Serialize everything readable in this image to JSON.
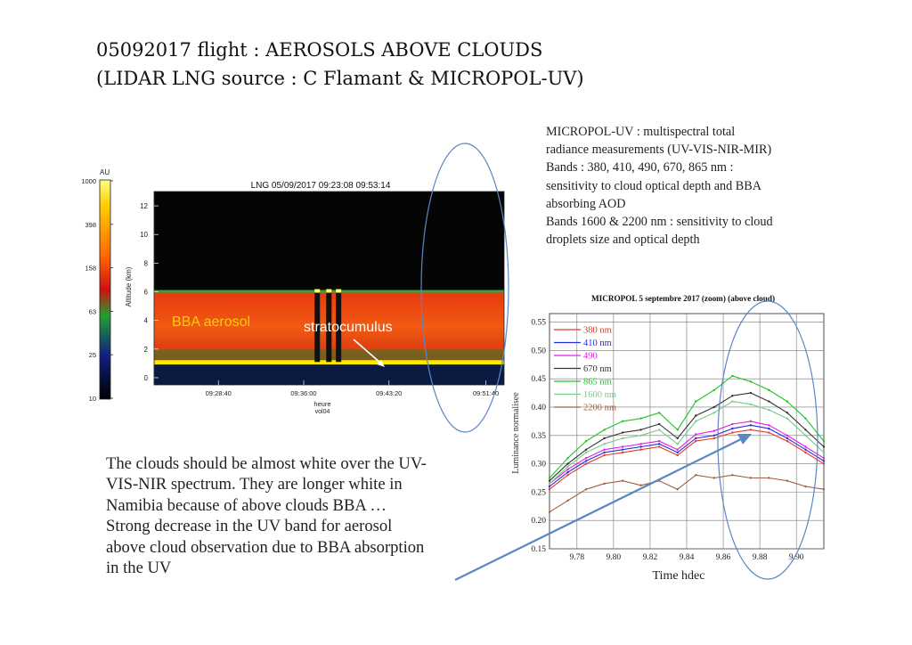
{
  "slide": {
    "title_line1": "05092017 flight : AEROSOLS ABOVE CLOUDS",
    "title_line2": "(LIDAR LNG source : C Flamant & MICROPOL-UV)",
    "description_lines": [
      "MICROPOL-UV : multispectral total",
      "radiance measurements (UV-VIS-NIR-MIR)",
      "Bands : 380, 410, 490, 670, 865 nm :",
      "sensitivity to cloud optical depth and BBA",
      "absorbing AOD",
      "Bands 1600 & 2200 nm : sensitivity to cloud",
      "droplets size and optical depth"
    ],
    "note_lines": [
      "The clouds should be almost white over the UV-",
      "VIS-NIR spectrum. They are longer white in",
      "Namibia because of above clouds BBA …",
      "Strong decrease in the UV band for aerosol",
      "above cloud observation due to BBA absorption",
      "in the UV"
    ],
    "highlight_color": "#5b86c4"
  },
  "chart_data": [
    {
      "type": "heatmap",
      "title": "LNG 05/09/2017 09:23:08 09:53:14",
      "xlabel": "heure",
      "xlabel_sub": "vol04",
      "ylabel": "Altitude (km)",
      "x_ticks": [
        "09:28:40",
        "09:36:00",
        "09:43:20",
        "09:51:40"
      ],
      "y_ticks": [
        0,
        2,
        4,
        6,
        8,
        10,
        12
      ],
      "ylim": [
        -0.5,
        13
      ],
      "colorbar": {
        "unit": "AU",
        "ticks": [
          "1000",
          "398",
          "158",
          "63",
          "25",
          "10"
        ],
        "scale": "log",
        "colors": [
          "#ffff80",
          "#ffcc00",
          "#ff6600",
          "#d01010",
          "#22a030",
          "#102080",
          "#000000"
        ]
      },
      "annotations": [
        {
          "text": "BBA aerosol",
          "color": "#f4d000"
        },
        {
          "text": "stratocumulus",
          "color": "#ffffff"
        }
      ],
      "layers": {
        "aerosol_top_km": 6.0,
        "cloud_top_km": 1.1,
        "stratocumulus_columns_time": [
          "09:37:10",
          "09:38:10",
          "09:39:00"
        ]
      }
    },
    {
      "type": "line",
      "title": "MICROPOL 5 septembre 2017 (zoom) (above cloud)",
      "xlabel": "Time hdec",
      "ylabel": "Luminance normalisee",
      "xlim": [
        9.765,
        9.915
      ],
      "ylim": [
        0.15,
        0.565
      ],
      "x_ticks": [
        9.78,
        9.8,
        9.82,
        9.84,
        9.86,
        9.88,
        9.9
      ],
      "x_tick_labels": [
        "9.78",
        "9.80",
        "9.82",
        "9.84",
        "9.86",
        "9.88",
        "9.90"
      ],
      "y_ticks": [
        0.15,
        0.2,
        0.25,
        0.3,
        0.35,
        0.4,
        0.45,
        0.5,
        0.55
      ],
      "y_tick_labels": [
        "0.15",
        "0.20",
        "0.25",
        "0.30",
        "0.35",
        "0.40",
        "0.45",
        "0.50",
        "0.55"
      ],
      "grid": true,
      "legend_position": "top-left",
      "x": [
        9.765,
        9.775,
        9.785,
        9.795,
        9.805,
        9.815,
        9.825,
        9.835,
        9.845,
        9.855,
        9.865,
        9.875,
        9.885,
        9.895,
        9.905,
        9.915
      ],
      "series": [
        {
          "name": "380 nm",
          "color": "#e23a2a",
          "values": [
            0.255,
            0.28,
            0.3,
            0.315,
            0.32,
            0.325,
            0.33,
            0.315,
            0.34,
            0.345,
            0.355,
            0.36,
            0.355,
            0.34,
            0.32,
            0.3
          ]
        },
        {
          "name": "410 nm",
          "color": "#2a2ae0",
          "values": [
            0.26,
            0.285,
            0.305,
            0.32,
            0.325,
            0.33,
            0.335,
            0.32,
            0.345,
            0.35,
            0.362,
            0.368,
            0.362,
            0.345,
            0.325,
            0.305
          ]
        },
        {
          "name": "490",
          "color": "#e020e0",
          "values": [
            0.265,
            0.29,
            0.31,
            0.325,
            0.33,
            0.335,
            0.34,
            0.325,
            0.352,
            0.358,
            0.37,
            0.375,
            0.368,
            0.35,
            0.33,
            0.31
          ]
        },
        {
          "name": "670 nm",
          "color": "#333333",
          "values": [
            0.27,
            0.3,
            0.325,
            0.345,
            0.355,
            0.36,
            0.37,
            0.345,
            0.385,
            0.4,
            0.42,
            0.425,
            0.41,
            0.39,
            0.36,
            0.33
          ]
        },
        {
          "name": "865 nm",
          "color": "#22c422",
          "values": [
            0.275,
            0.31,
            0.34,
            0.36,
            0.375,
            0.38,
            0.39,
            0.36,
            0.41,
            0.43,
            0.455,
            0.445,
            0.43,
            0.41,
            0.38,
            0.34
          ]
        },
        {
          "name": "1600 nm",
          "color": "#77cc88",
          "values": [
            0.265,
            0.295,
            0.32,
            0.335,
            0.345,
            0.35,
            0.36,
            0.335,
            0.375,
            0.39,
            0.41,
            0.405,
            0.395,
            0.38,
            0.35,
            0.32
          ]
        },
        {
          "name": "2200 nm",
          "color": "#a06040",
          "values": [
            0.215,
            0.235,
            0.255,
            0.265,
            0.27,
            0.262,
            0.27,
            0.255,
            0.28,
            0.275,
            0.28,
            0.275,
            0.275,
            0.27,
            0.26,
            0.255
          ]
        }
      ]
    }
  ]
}
